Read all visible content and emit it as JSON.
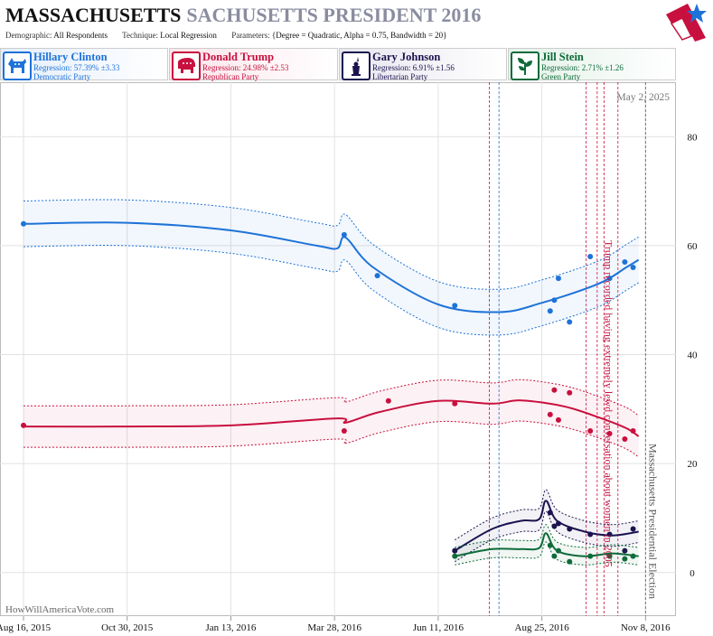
{
  "header": {
    "state": "MASSACHUSETTS",
    "subtitle": "SACHUSETTS PRESIDENT 2016",
    "demographic_label": "Demographic:",
    "demographic_value": "All Respondents",
    "technique_label": "Technique:",
    "technique_value": "Local Regression",
    "parameters_label": "Parameters:",
    "parameters_value": "{Degree = Quadratic, Alpha = 0.75, Bandwidth = 20}"
  },
  "candidates": [
    {
      "name": "Hillary Clinton",
      "regression": "Regression: 57.39% ±3.33",
      "party": "Democratic Party",
      "color": "#1e73d8",
      "icon": "donkey-icon"
    },
    {
      "name": "Donald Trump",
      "regression": "Regression: 24.98% ±2.53",
      "party": "Republican Party",
      "color": "#c8103e",
      "icon": "elephant-icon"
    },
    {
      "name": "Gary Johnson",
      "regression": "Regression: 6.91% ±1.56",
      "party": "Libertarian Party",
      "color": "#1b1450",
      "icon": "liberty-icon"
    },
    {
      "name": "Jill Stein",
      "regression": "Regression: 2.71% ±1.26",
      "party": "Green Party",
      "color": "#0e6b3a",
      "icon": "leaf-icon"
    }
  ],
  "watermark": "HowWillAmericaVote.com",
  "current_date": "May 2, 2025",
  "chart_data": {
    "type": "line",
    "x_ticks": [
      "2015-08-16",
      "2015-10-30",
      "2016-01-13",
      "2016-03-28",
      "2016-06-11",
      "2016-08-25",
      "2016-11-08"
    ],
    "x_tick_labels": [
      "Aug 16, 2015",
      "Oct 30, 2015",
      "Jan 13, 2016",
      "Mar 28, 2016",
      "Jun 11, 2016",
      "Aug 25, 2016",
      "Nov 8, 2016"
    ],
    "xlim": [
      "2015-07-30",
      "2016-11-30"
    ],
    "ylim": [
      -8,
      90
    ],
    "y_ticks": [
      0,
      20,
      40,
      60,
      80
    ],
    "annotations": [
      {
        "text": "Trump recorded having extremely lewd conversation about women in 2005",
        "date": "2016-10-07",
        "color": "#c8103e"
      },
      {
        "text": "Massachusetts Presidential Election",
        "date": "2016-11-08",
        "color": "#555555"
      }
    ],
    "event_lines": [
      {
        "date": "2016-07-18",
        "color": "#c8103e"
      },
      {
        "date": "2016-07-25",
        "color": "#1e73d8"
      },
      {
        "date": "2016-09-26",
        "color": "#c8103e"
      },
      {
        "date": "2016-10-04",
        "color": "#c8103e"
      },
      {
        "date": "2016-10-09",
        "color": "#c8103e"
      },
      {
        "date": "2016-10-19",
        "color": "#c8103e"
      },
      {
        "date": "2016-11-08",
        "color": "#555555"
      }
    ],
    "series": [
      {
        "name": "Hillary Clinton",
        "color": "#1e73d8",
        "band": 4.2,
        "line": [
          [
            "2015-08-16",
            64
          ],
          [
            "2015-10-30",
            64.2
          ],
          [
            "2016-01-13",
            62.8
          ],
          [
            "2016-03-15",
            60
          ],
          [
            "2016-03-30",
            59.5
          ],
          [
            "2016-04-05",
            61.5
          ],
          [
            "2016-04-25",
            56
          ],
          [
            "2016-06-11",
            49.2
          ],
          [
            "2016-07-25",
            47.8
          ],
          [
            "2016-08-25",
            49.5
          ],
          [
            "2016-10-05",
            53
          ],
          [
            "2016-10-25",
            56
          ],
          [
            "2016-11-03",
            57.4
          ]
        ],
        "points": [
          [
            "2015-08-16",
            64
          ],
          [
            "2016-04-04",
            62
          ],
          [
            "2016-04-28",
            54.5
          ],
          [
            "2016-06-23",
            49
          ],
          [
            "2016-08-31",
            48
          ],
          [
            "2016-09-03",
            50
          ],
          [
            "2016-09-06",
            54
          ],
          [
            "2016-09-14",
            46
          ],
          [
            "2016-09-29",
            58
          ],
          [
            "2016-10-13",
            54
          ],
          [
            "2016-10-24",
            57
          ],
          [
            "2016-10-30",
            56
          ]
        ]
      },
      {
        "name": "Donald Trump",
        "color": "#c8103e",
        "band": 3.8,
        "line": [
          [
            "2015-08-16",
            26.8
          ],
          [
            "2015-10-30",
            26.8
          ],
          [
            "2016-01-13",
            27
          ],
          [
            "2016-03-30",
            28.3
          ],
          [
            "2016-04-05",
            27.5
          ],
          [
            "2016-04-30",
            29.5
          ],
          [
            "2016-06-11",
            31.5
          ],
          [
            "2016-07-20",
            31
          ],
          [
            "2016-08-10",
            31.6
          ],
          [
            "2016-09-10",
            30.5
          ],
          [
            "2016-10-05",
            28.5
          ],
          [
            "2016-10-25",
            26.5
          ],
          [
            "2016-11-03",
            25
          ]
        ],
        "points": [
          [
            "2015-08-16",
            27
          ],
          [
            "2016-04-04",
            26
          ],
          [
            "2016-05-06",
            31.5
          ],
          [
            "2016-06-23",
            31
          ],
          [
            "2016-08-31",
            29
          ],
          [
            "2016-09-03",
            33.5
          ],
          [
            "2016-09-06",
            28
          ],
          [
            "2016-09-14",
            33
          ],
          [
            "2016-09-29",
            26
          ],
          [
            "2016-10-13",
            25.5
          ],
          [
            "2016-10-24",
            24.5
          ],
          [
            "2016-10-30",
            26
          ]
        ]
      },
      {
        "name": "Gary Johnson",
        "color": "#1b1450",
        "band": 2.0,
        "line": [
          [
            "2016-06-23",
            4
          ],
          [
            "2016-07-20",
            8
          ],
          [
            "2016-08-10",
            9.5
          ],
          [
            "2016-08-23",
            9.8
          ],
          [
            "2016-08-28",
            13.2
          ],
          [
            "2016-09-05",
            9.5
          ],
          [
            "2016-09-25",
            7.5
          ],
          [
            "2016-10-15",
            6.8
          ],
          [
            "2016-11-03",
            7.5
          ]
        ],
        "points": [
          [
            "2016-06-23",
            4
          ],
          [
            "2016-08-31",
            11
          ],
          [
            "2016-09-03",
            8.5
          ],
          [
            "2016-09-06",
            9
          ],
          [
            "2016-09-14",
            8
          ],
          [
            "2016-09-29",
            7
          ],
          [
            "2016-10-13",
            7
          ],
          [
            "2016-10-24",
            4
          ],
          [
            "2016-10-30",
            8
          ]
        ]
      },
      {
        "name": "Jill Stein",
        "color": "#0e6b3a",
        "band": 1.6,
        "line": [
          [
            "2016-06-23",
            3
          ],
          [
            "2016-07-20",
            4.3
          ],
          [
            "2016-08-10",
            4.3
          ],
          [
            "2016-08-23",
            4.5
          ],
          [
            "2016-08-28",
            7.2
          ],
          [
            "2016-09-05",
            4
          ],
          [
            "2016-09-25",
            3
          ],
          [
            "2016-10-15",
            3.5
          ],
          [
            "2016-11-03",
            3
          ]
        ],
        "points": [
          [
            "2016-06-23",
            3
          ],
          [
            "2016-08-31",
            5
          ],
          [
            "2016-09-03",
            3
          ],
          [
            "2016-09-06",
            4
          ],
          [
            "2016-09-14",
            2
          ],
          [
            "2016-09-29",
            3
          ],
          [
            "2016-10-13",
            3
          ],
          [
            "2016-10-24",
            2.5
          ],
          [
            "2016-10-30",
            3
          ]
        ]
      }
    ]
  }
}
